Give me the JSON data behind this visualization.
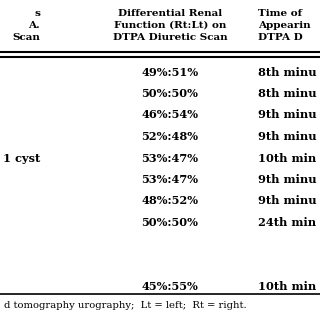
{
  "col1_header": [
    "s",
    "A.",
    "Scan"
  ],
  "col2_header": [
    "Differential Renal",
    "Function (Rt:Lt) on",
    "DTPA Diuretic Scan"
  ],
  "col3_header": [
    "Time of",
    "Appearin",
    "DTPA D"
  ],
  "rows": [
    {
      "col1": "",
      "col2": "49%:51%",
      "col3": "8th minu"
    },
    {
      "col1": "",
      "col2": "50%:50%",
      "col3": "8th minu"
    },
    {
      "col1": "",
      "col2": "46%:54%",
      "col3": "9th minu"
    },
    {
      "col1": "",
      "col2": "52%:48%",
      "col3": "9th minu"
    },
    {
      "col1": "1 cyst",
      "col2": "53%:47%",
      "col3": "10th min"
    },
    {
      "col1": "",
      "col2": "53%:47%",
      "col3": "9th minu"
    },
    {
      "col1": "",
      "col2": "48%:52%",
      "col3": "9th minu"
    },
    {
      "col1": "",
      "col2": "50%:50%",
      "col3": "24th min"
    }
  ],
  "extra_row": {
    "col1": "",
    "col2": "45%:55%",
    "col3": "10th min"
  },
  "footnote": "d tomography urography;  Lt = left;  Rt = right.",
  "bg_color": "#ffffff",
  "text_color": "#000000",
  "header_fontsize": 7.5,
  "data_fontsize": 8.2,
  "footnote_fontsize": 7.2
}
